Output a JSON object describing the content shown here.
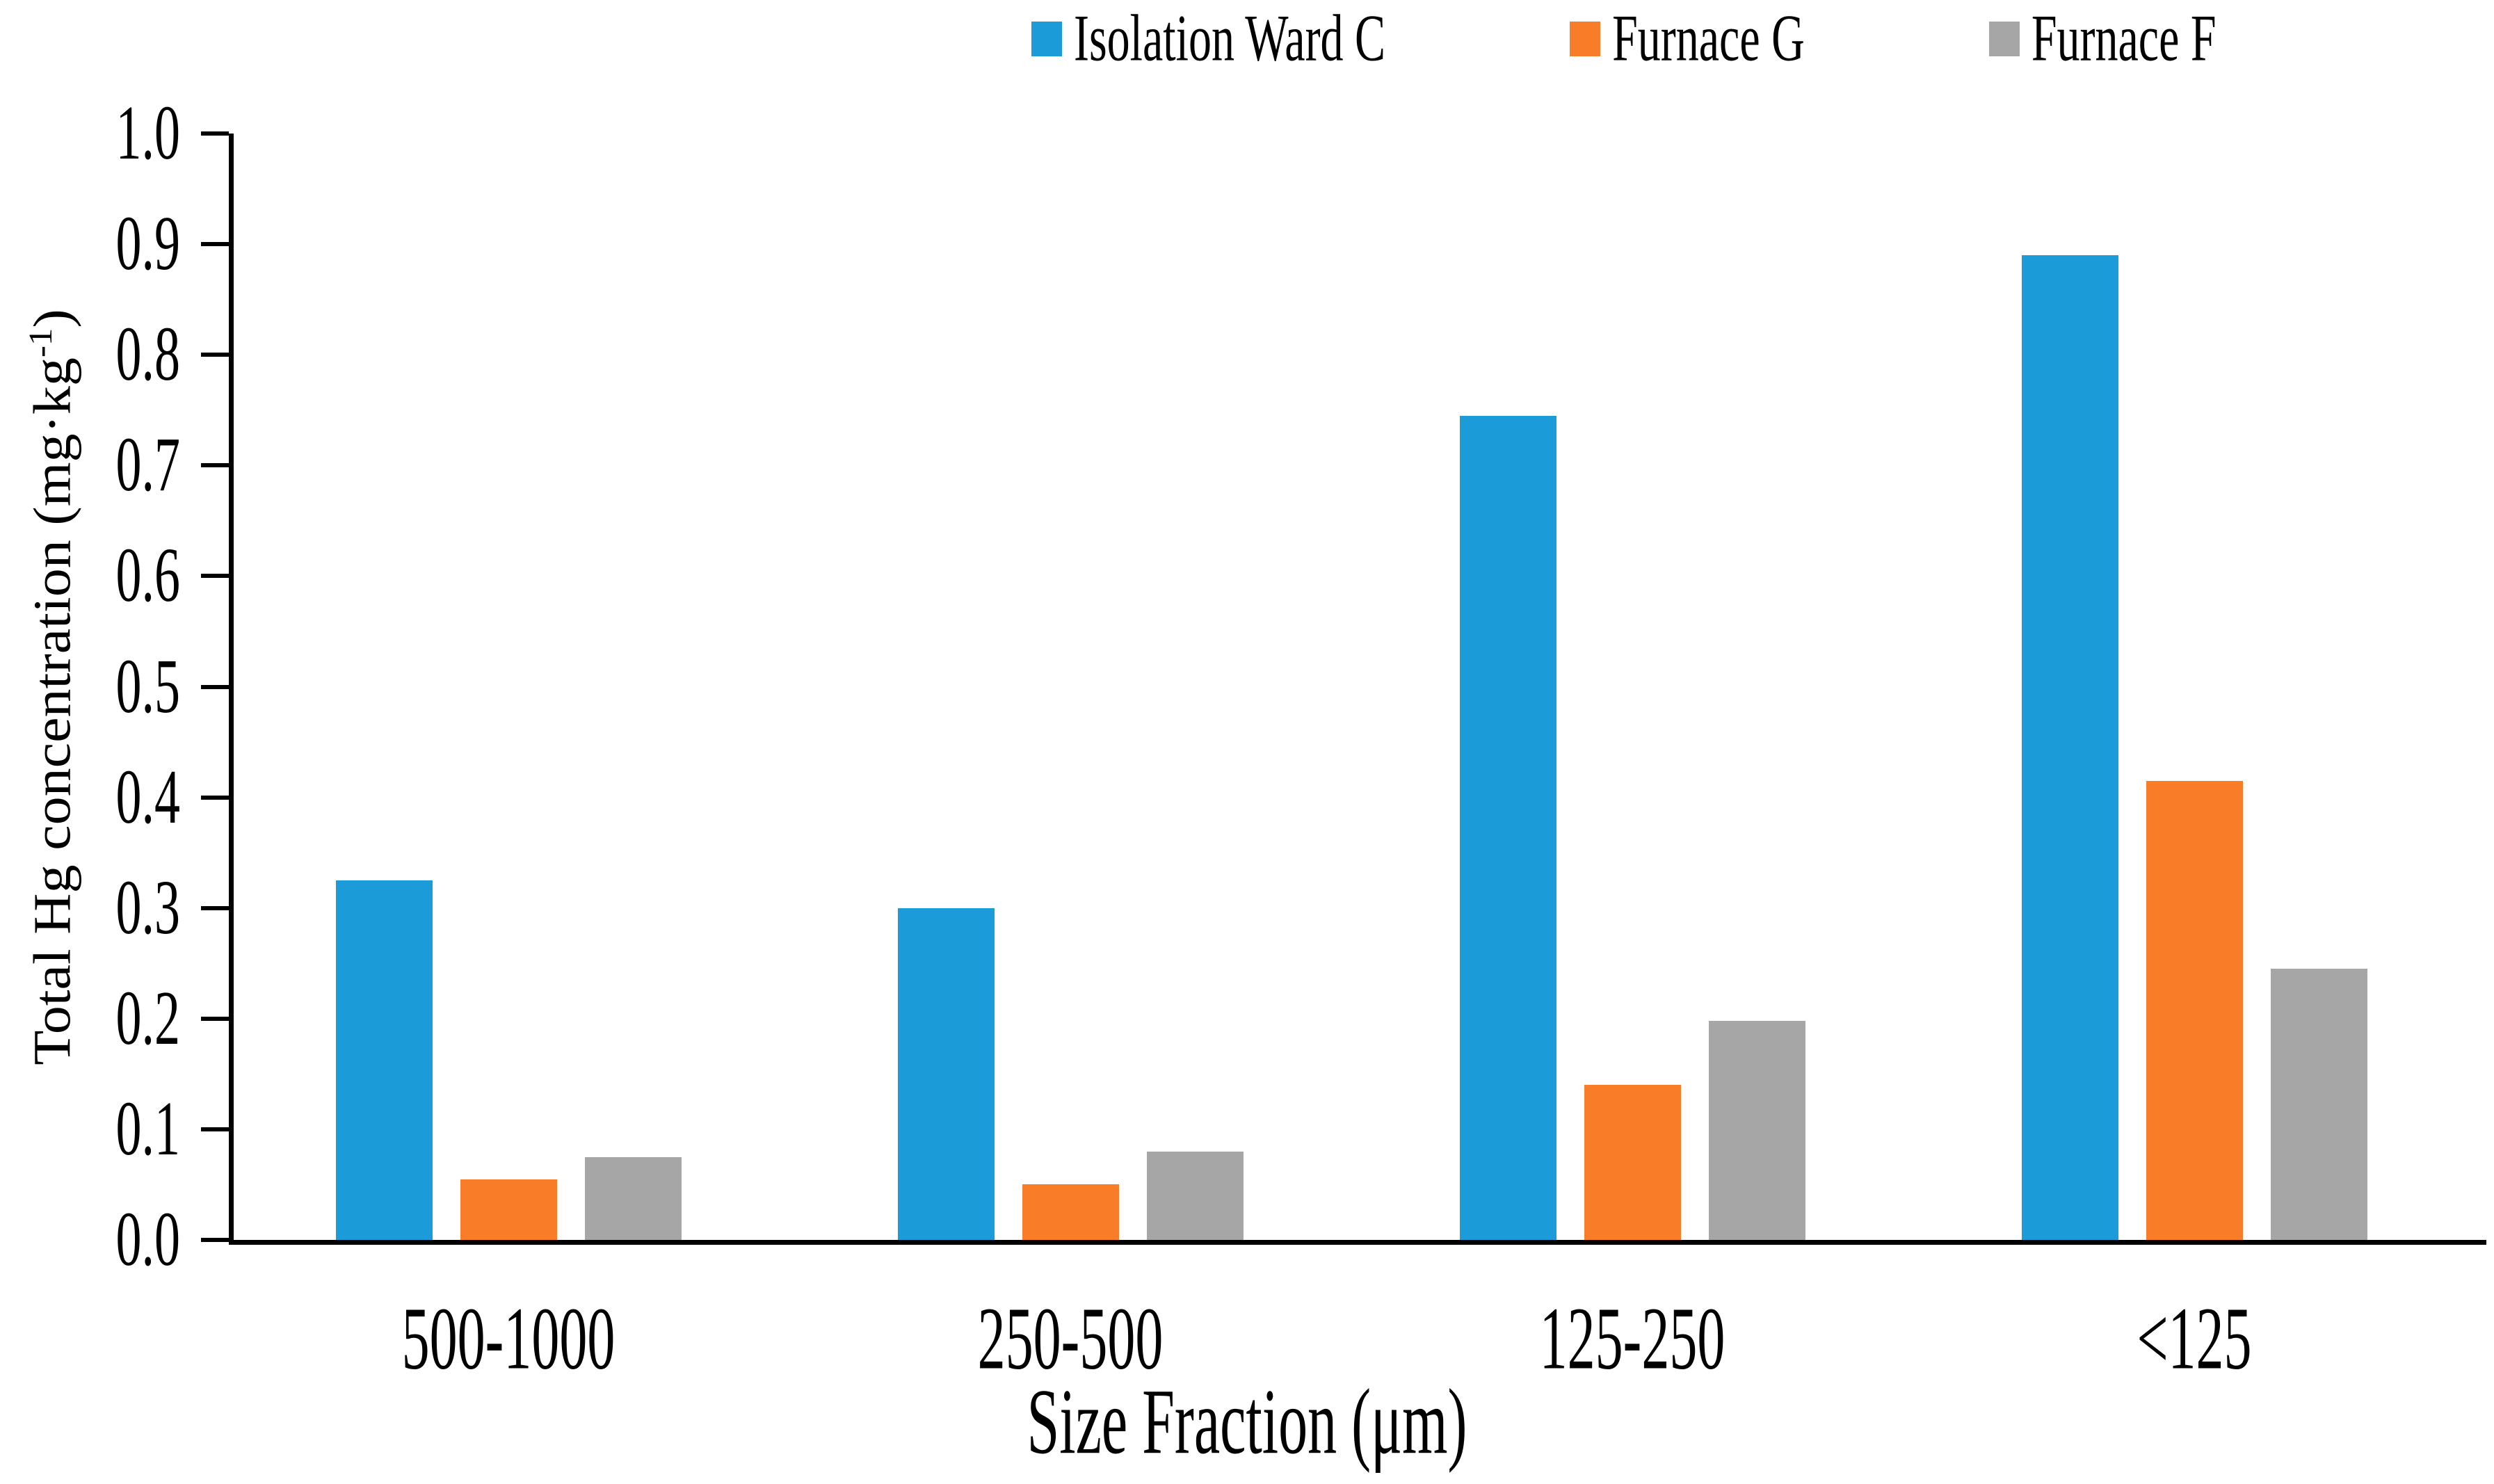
{
  "figure": {
    "background": "#ffffff",
    "text_color": "#000000"
  },
  "chart_data": {
    "type": "bar",
    "title": "",
    "categories": [
      "500-1000",
      "250-500",
      "125-250",
      "<125"
    ],
    "series": [
      {
        "name": "Isolation Ward C",
        "color": "#1B9CD9",
        "values": [
          0.325,
          0.3,
          0.745,
          0.89
        ]
      },
      {
        "name": "Furnace G",
        "color": "#F97D28",
        "values": [
          0.055,
          0.05,
          0.14,
          0.415
        ]
      },
      {
        "name": "Furnace F",
        "color": "#A6A6A6",
        "values": [
          0.075,
          0.08,
          0.198,
          0.245
        ]
      }
    ],
    "xlabel": "Size Fraction (μm)",
    "ylabel": "Total Hg concentration (mg·kg⁻¹)",
    "ylabel_parts": {
      "prefix": "Total Hg concentration (mg·kg",
      "superscript": "-1",
      "suffix": ")"
    },
    "ylim": [
      0.0,
      1.0
    ],
    "ytick_step": 0.1,
    "ytick_decimals": 1,
    "grid": false,
    "legend_position": "top"
  }
}
